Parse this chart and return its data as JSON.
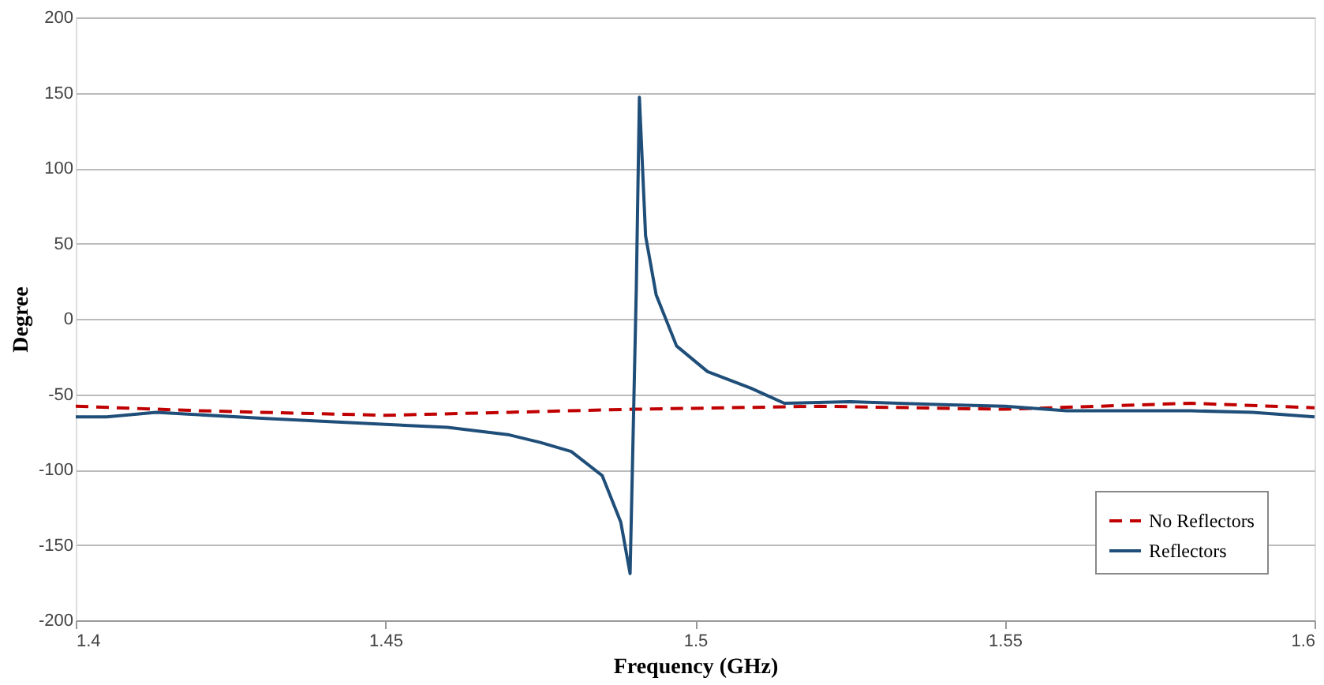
{
  "chart_data": {
    "type": "line",
    "xlabel": "Frequency (GHz)",
    "ylabel": "Degree",
    "xlim": [
      1.4,
      1.6
    ],
    "xticks": [
      1.4,
      1.45,
      1.5,
      1.55,
      1.6
    ],
    "ylim": [
      -200,
      200
    ],
    "yticks": [
      -200,
      -150,
      -100,
      -50,
      0,
      50,
      100,
      150,
      200
    ],
    "grid": "y",
    "legend": "bottom right",
    "series": [
      {
        "name": "No Reflectors",
        "color": "#c00000",
        "line_style": "dashed",
        "x": [
          1.4,
          1.42,
          1.45,
          1.47,
          1.49,
          1.52,
          1.55,
          1.58,
          1.6
        ],
        "values": [
          -58,
          -61,
          -64,
          -62,
          -60,
          -58,
          -60,
          -56,
          -59
        ]
      },
      {
        "name": "Reflectors",
        "color": "#1f4e79",
        "line_style": "solid",
        "x": [
          1.4,
          1.405,
          1.413,
          1.43,
          1.45,
          1.46,
          1.47,
          1.475,
          1.48,
          1.485,
          1.488,
          1.4895,
          1.4905,
          1.491,
          1.492,
          1.4937,
          1.497,
          1.502,
          1.509,
          1.5144,
          1.525,
          1.54,
          1.55,
          1.56,
          1.58,
          1.59,
          1.6
        ],
        "values": [
          -65,
          -65,
          -62,
          -66,
          -70,
          -72,
          -77,
          -82,
          -88,
          -104,
          -135,
          -169,
          20,
          147,
          55,
          16,
          -18,
          -35,
          -46,
          -56,
          -55,
          -57,
          -58,
          -61,
          -61,
          -62,
          -65
        ]
      }
    ]
  }
}
